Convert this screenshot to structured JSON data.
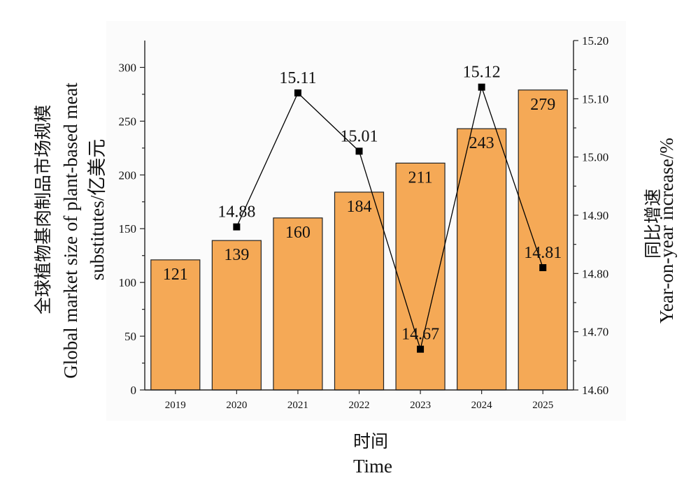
{
  "chart_data": {
    "type": "bar+line",
    "categories": [
      "2019",
      "2020",
      "2021",
      "2022",
      "2023",
      "2024",
      "2025"
    ],
    "bar_series": {
      "values": [
        121,
        139,
        160,
        184,
        211,
        243,
        279
      ],
      "color": "#F5A956",
      "ylim": [
        0,
        325
      ],
      "yticks": [
        "0",
        "50",
        "100",
        "150",
        "200",
        "250",
        "300"
      ]
    },
    "line_series": {
      "values": [
        14.88,
        15.11,
        15.01,
        14.67,
        15.12,
        14.81
      ],
      "x": [
        "2020",
        "2021",
        "2022",
        "2023",
        "2024",
        "2025"
      ],
      "labels": [
        "14.88",
        "15.11",
        "15.01",
        "14.67",
        "15.12",
        "14.81"
      ],
      "color": "#000000",
      "ylim": [
        14.6,
        15.2
      ],
      "yticks": [
        "14.60",
        "14.70",
        "14.80",
        "14.90",
        "15.00",
        "15.10",
        "15.20"
      ]
    },
    "ylabel_left_cn": "全球植物基肉制品市场规模",
    "ylabel_left_en_1": "Global market size of plant-based meat",
    "ylabel_left_en_2": "substitutes/亿美元",
    "ylabel_right_cn": "同比增速",
    "ylabel_right_en": "Year-on-year increase/%",
    "xlabel_cn": "时间",
    "xlabel_en": "Time",
    "grid": false,
    "legend": "none"
  }
}
